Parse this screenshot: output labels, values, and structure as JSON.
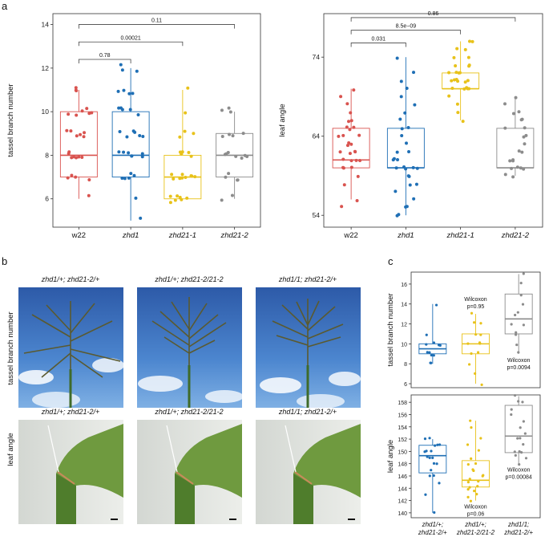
{
  "panel_labels": {
    "a": "a",
    "b": "b",
    "c": "c"
  },
  "colors": {
    "w22": "#d9534f",
    "zhd1": "#1f6fb5",
    "zhd21-1": "#e8c21a",
    "zhd21-2": "#8c8c8c"
  },
  "panel_b": {
    "top_titles": [
      "zhd1/+; zhd21-2/+",
      "zhd1/+; zhd21-2/21-2",
      "zhd1/1; zhd21-2/+"
    ],
    "bottom_titles": [
      "zhd1/+; zhd21-2/+",
      "zhd1/+; zhd21-2/21-2",
      "zhd1/1; zhd21-2/+"
    ],
    "row_label_top": "tassel branch number",
    "row_label_bottom": "leaf angle"
  },
  "chart_data": [
    {
      "id": "a-left",
      "type": "box",
      "ylabel": "tassel branch number",
      "ylim": [
        4.7,
        14.5
      ],
      "yticks": [
        6,
        8,
        10,
        12,
        14
      ],
      "categories": [
        "w22",
        "zhd1",
        "zhd21-1",
        "zhd21-2"
      ],
      "category_italic": [
        false,
        true,
        true,
        true
      ],
      "boxes": [
        {
          "q1": 7,
          "median": 8,
          "q3": 10,
          "min": 6,
          "max": 11
        },
        {
          "q1": 7,
          "median": 8,
          "q3": 10,
          "min": 5,
          "max": 12
        },
        {
          "q1": 6,
          "median": 7,
          "q3": 8,
          "min": 6,
          "max": 11
        },
        {
          "q1": 7,
          "median": 8,
          "q3": 9,
          "min": 6,
          "max": 10
        }
      ],
      "points": [
        [
          6,
          7,
          7,
          7,
          8,
          8,
          8,
          8,
          8,
          8,
          9,
          9,
          9,
          9,
          9,
          10,
          10,
          10,
          10,
          10,
          11,
          11,
          11,
          8,
          9,
          7,
          10
        ],
        [
          5,
          6,
          7,
          7,
          7,
          7,
          8,
          8,
          8,
          8,
          8,
          8,
          9,
          9,
          9,
          9,
          9,
          10,
          10,
          10,
          10,
          10,
          11,
          11,
          11,
          12,
          12,
          12,
          11,
          9,
          7,
          8
        ],
        [
          6,
          6,
          6,
          6,
          6,
          6,
          7,
          7,
          7,
          7,
          7,
          7,
          7,
          7,
          8,
          8,
          8,
          8,
          8,
          9,
          9,
          9,
          10,
          11,
          6,
          7
        ],
        [
          6,
          6,
          7,
          7,
          7,
          7,
          8,
          8,
          8,
          8,
          8,
          8,
          8,
          9,
          9,
          9,
          9,
          10,
          10,
          10
        ]
      ],
      "comparisons": [
        {
          "from": 0,
          "to": 1,
          "label": "0.78",
          "y": 12.4
        },
        {
          "from": 0,
          "to": 2,
          "label": "0.00021",
          "y": 13.2
        },
        {
          "from": 0,
          "to": 3,
          "label": "0.11",
          "y": 14.0
        }
      ]
    },
    {
      "id": "a-right",
      "type": "box",
      "ylabel": "leaf angle",
      "ylim": [
        52.5,
        79.5
      ],
      "yticks": [
        54,
        64,
        74
      ],
      "categories": [
        "w22",
        "zhd1",
        "zhd21-1",
        "zhd21-2"
      ],
      "category_italic": [
        false,
        true,
        true,
        true
      ],
      "boxes": [
        {
          "q1": 60,
          "median": 61,
          "q3": 65,
          "min": 56,
          "max": 70
        },
        {
          "q1": 60,
          "median": 60,
          "q3": 65,
          "min": 54,
          "max": 74
        },
        {
          "q1": 70,
          "median": 70,
          "q3": 72,
          "min": 66,
          "max": 76
        },
        {
          "q1": 60,
          "median": 60,
          "q3": 65,
          "min": 59,
          "max": 69
        }
      ],
      "points": [
        [
          55,
          56,
          58,
          59,
          60,
          60,
          60,
          61,
          61,
          61,
          62,
          62,
          62,
          63,
          63,
          63,
          64,
          64,
          64,
          65,
          65,
          65,
          66,
          66,
          67,
          68,
          69,
          70,
          61,
          62
        ],
        [
          54,
          54,
          55,
          55,
          56,
          57,
          58,
          59,
          59,
          60,
          60,
          60,
          60,
          61,
          61,
          62,
          62,
          63,
          64,
          65,
          65,
          66,
          67,
          68,
          69,
          70,
          71,
          72,
          74,
          60,
          61,
          58
        ],
        [
          66,
          67,
          68,
          69,
          70,
          70,
          70,
          70,
          71,
          71,
          71,
          71,
          71,
          72,
          72,
          72,
          72,
          73,
          73,
          73,
          74,
          74,
          75,
          75,
          76,
          76,
          70,
          71
        ],
        [
          59,
          59,
          60,
          60,
          60,
          61,
          61,
          62,
          62,
          63,
          64,
          65,
          65,
          66,
          66,
          67,
          67,
          68,
          69,
          60,
          61,
          64
        ]
      ],
      "comparisons": [
        {
          "from": 0,
          "to": 1,
          "label": "0.031",
          "y": 75.8
        },
        {
          "from": 0,
          "to": 2,
          "label": "8.5e−09",
          "y": 77.4
        },
        {
          "from": 0,
          "to": 3,
          "label": "0.86",
          "y": 79.0
        }
      ]
    },
    {
      "id": "c-top",
      "type": "box",
      "ylabel": "tassel branch number",
      "ylim": [
        5.6,
        17.2
      ],
      "yticks": [
        6,
        8,
        10,
        12,
        14,
        16
      ],
      "boxes": [
        {
          "q1": 9,
          "median": 9.5,
          "q3": 10,
          "min": 8,
          "max": 14
        },
        {
          "q1": 9,
          "median": 10,
          "q3": 11,
          "min": 6,
          "max": 13
        },
        {
          "q1": 11,
          "median": 12.5,
          "q3": 15,
          "min": 9,
          "max": 17
        }
      ],
      "points": [
        [
          8,
          8,
          9,
          9,
          9,
          9,
          10,
          10,
          10,
          10,
          11,
          14
        ],
        [
          6,
          7,
          8,
          9,
          9,
          10,
          10,
          10,
          11,
          11,
          12,
          12,
          13
        ],
        [
          9,
          10,
          11,
          11,
          12,
          12,
          13,
          13,
          14,
          15,
          16,
          17
        ]
      ],
      "colors": [
        "#1f6fb5",
        "#e8c21a",
        "#8c8c8c"
      ],
      "annotations": [
        {
          "box": 1,
          "lines": [
            "Wilcoxon",
            "p=0.95"
          ],
          "pos": "above"
        },
        {
          "box": 2,
          "lines": [
            "Wilcoxon",
            "p=0.0094"
          ],
          "pos": "below"
        }
      ]
    },
    {
      "id": "c-bottom",
      "type": "box",
      "ylabel": "leaf angle",
      "ylim": [
        139.2,
        159.2
      ],
      "yticks": [
        140,
        142,
        144,
        146,
        148,
        150,
        152,
        154,
        156,
        158
      ],
      "categories": [
        "zhd1/+;\nzhd21-2/+",
        "zhd1/+;\nzhd21-2/21-2",
        "zhd1/1;\nzhd21-2/+"
      ],
      "boxes": [
        {
          "q1": 146.5,
          "median": 149.3,
          "q3": 151,
          "min": 140,
          "max": 152
        },
        {
          "q1": 144.2,
          "median": 145.3,
          "q3": 148.5,
          "min": 142,
          "max": 155
        },
        {
          "q1": 149.8,
          "median": 152.5,
          "q3": 157.5,
          "min": 148,
          "max": 159
        }
      ],
      "points": [
        [
          140,
          143,
          145,
          146,
          146,
          147,
          148,
          148,
          149,
          149,
          149,
          150,
          150,
          150,
          151,
          151,
          151,
          152,
          152
        ],
        [
          142,
          142.5,
          143,
          143.5,
          144,
          144,
          144.5,
          145,
          145,
          145.5,
          146,
          146,
          147,
          147,
          148,
          148,
          149,
          150,
          151,
          152,
          154,
          155
        ],
        [
          148,
          149,
          149.5,
          150,
          150,
          151,
          152,
          152,
          153,
          154,
          155,
          156,
          157,
          158,
          158,
          159,
          150
        ]
      ],
      "colors": [
        "#1f6fb5",
        "#e8c21a",
        "#8c8c8c"
      ],
      "annotations": [
        {
          "box": 1,
          "lines": [
            "Wilcoxon",
            "p=0.06"
          ],
          "pos": "below"
        },
        {
          "box": 2,
          "lines": [
            "Wilcoxon",
            "p=0.00084"
          ],
          "pos": "below"
        }
      ]
    }
  ]
}
